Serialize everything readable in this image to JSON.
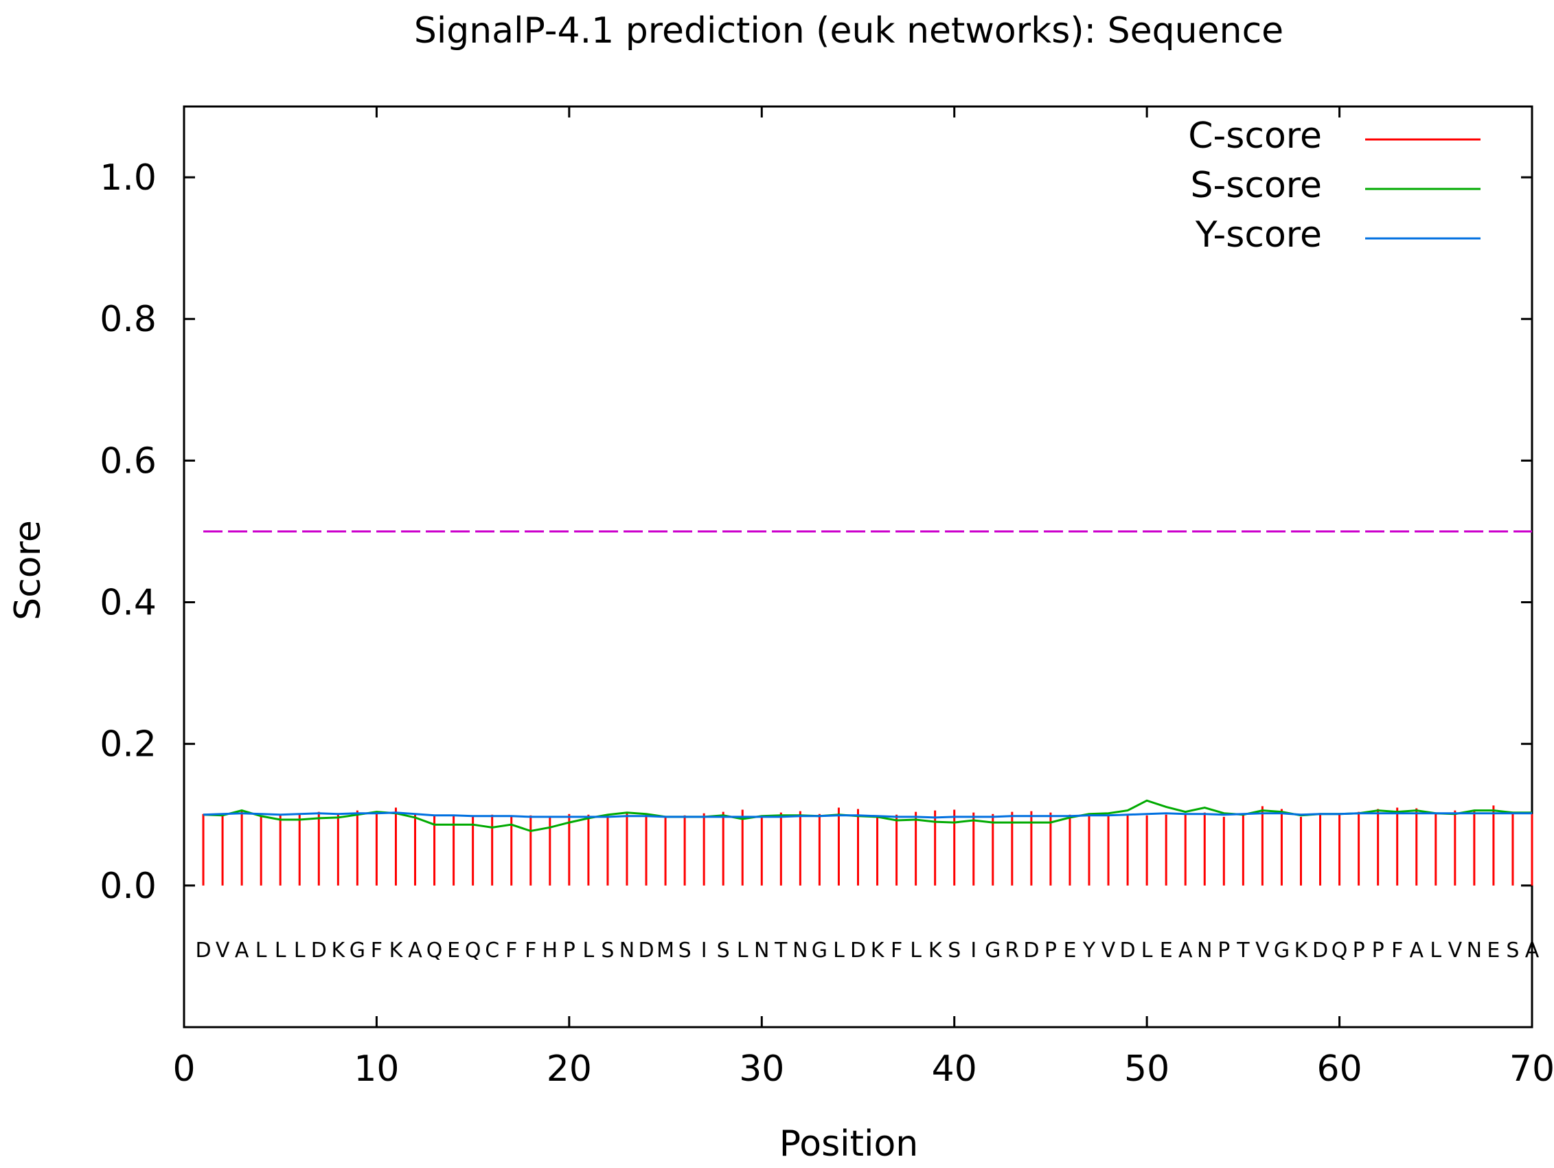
{
  "chart_data": {
    "type": "line",
    "title": "SignalP-4.1 prediction (euk networks): Sequence",
    "xlabel": "Position",
    "ylabel": "Score",
    "xlim": [
      0,
      70
    ],
    "ylim": [
      -0.2,
      1.1
    ],
    "x_ticks": [
      0,
      10,
      20,
      30,
      40,
      50,
      60,
      70
    ],
    "y_ticks": [
      0.0,
      0.2,
      0.4,
      0.6,
      0.8,
      1.0
    ],
    "x_tick_labels": [
      "0",
      "10",
      "20",
      "30",
      "40",
      "50",
      "60",
      "70"
    ],
    "y_tick_labels": [
      "0.0",
      "0.2",
      "0.4",
      "0.6",
      "0.8",
      "1.0"
    ],
    "sequence": "DVALLLDKGFKAQEQCFFHPLSNDMSISLNTNGLDKFLKSIGRDPEYVDLEANPTVGKDQPPFALVNESA",
    "threshold": 0.5,
    "colors": {
      "c_score": "#ff0000",
      "s_score": "#00aa00",
      "y_score": "#0070e0",
      "threshold": "#cc00cc"
    },
    "legend": [
      {
        "key": "c_score",
        "label": "C-score"
      },
      {
        "key": "s_score",
        "label": "S-score"
      },
      {
        "key": "y_score",
        "label": "Y-score"
      }
    ],
    "legend_position": "top-right",
    "series": [
      {
        "key": "c_score",
        "name": "C-score",
        "style": "impulses",
        "values": [
          0.101,
          0.098,
          0.105,
          0.099,
          0.1,
          0.102,
          0.104,
          0.1,
          0.106,
          0.101,
          0.11,
          0.1,
          0.098,
          0.099,
          0.097,
          0.1,
          0.098,
          0.099,
          0.096,
          0.101,
          0.1,
          0.099,
          0.102,
          0.101,
          0.098,
          0.099,
          0.102,
          0.104,
          0.107,
          0.097,
          0.103,
          0.105,
          0.101,
          0.11,
          0.108,
          0.099,
          0.1,
          0.104,
          0.106,
          0.107,
          0.103,
          0.101,
          0.104,
          0.105,
          0.103,
          0.1,
          0.102,
          0.098,
          0.101,
          0.099,
          0.1,
          0.101,
          0.103,
          0.097,
          0.1,
          0.112,
          0.108,
          0.097,
          0.1,
          0.101,
          0.104,
          0.108,
          0.11,
          0.109,
          0.101,
          0.106,
          0.105,
          0.113,
          0.104,
          0.101
        ]
      },
      {
        "key": "s_score",
        "name": "S-score",
        "style": "line",
        "values": [
          0.1,
          0.099,
          0.106,
          0.098,
          0.093,
          0.093,
          0.095,
          0.096,
          0.1,
          0.104,
          0.102,
          0.096,
          0.086,
          0.086,
          0.086,
          0.082,
          0.086,
          0.077,
          0.082,
          0.089,
          0.095,
          0.1,
          0.103,
          0.101,
          0.097,
          0.097,
          0.097,
          0.099,
          0.094,
          0.098,
          0.099,
          0.099,
          0.098,
          0.1,
          0.098,
          0.097,
          0.092,
          0.093,
          0.09,
          0.089,
          0.092,
          0.089,
          0.089,
          0.089,
          0.089,
          0.096,
          0.101,
          0.102,
          0.106,
          0.12,
          0.111,
          0.104,
          0.11,
          0.102,
          0.1,
          0.106,
          0.104,
          0.099,
          0.101,
          0.101,
          0.102,
          0.106,
          0.104,
          0.106,
          0.102,
          0.101,
          0.106,
          0.106,
          0.103,
          0.103
        ]
      },
      {
        "key": "y_score",
        "name": "Y-score",
        "style": "line",
        "values": [
          0.1,
          0.101,
          0.102,
          0.101,
          0.1,
          0.101,
          0.102,
          0.101,
          0.102,
          0.102,
          0.103,
          0.101,
          0.099,
          0.099,
          0.098,
          0.098,
          0.098,
          0.097,
          0.097,
          0.097,
          0.097,
          0.097,
          0.098,
          0.098,
          0.097,
          0.097,
          0.097,
          0.097,
          0.097,
          0.097,
          0.097,
          0.098,
          0.098,
          0.099,
          0.099,
          0.098,
          0.097,
          0.097,
          0.096,
          0.097,
          0.097,
          0.097,
          0.098,
          0.098,
          0.098,
          0.098,
          0.099,
          0.099,
          0.1,
          0.101,
          0.102,
          0.101,
          0.101,
          0.1,
          0.101,
          0.102,
          0.102,
          0.1,
          0.101,
          0.101,
          0.102,
          0.102,
          0.102,
          0.102,
          0.102,
          0.102,
          0.102,
          0.102,
          0.102,
          0.102
        ]
      }
    ]
  }
}
